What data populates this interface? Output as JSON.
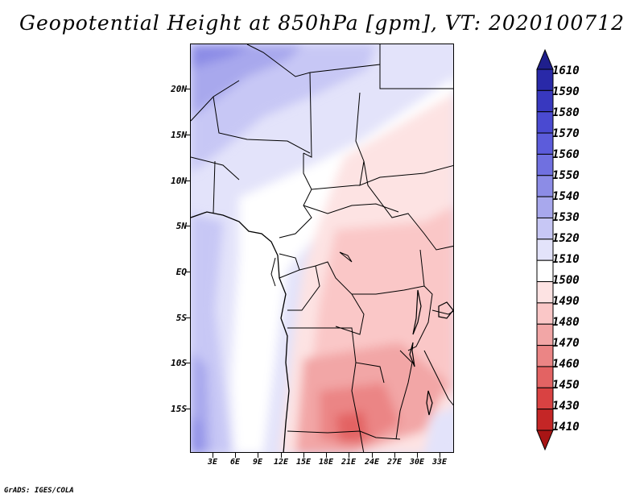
{
  "title": "Geopotential Height at 850hPa [gpm], VT: 2020100712",
  "credit": "GrADS: IGES/COLA",
  "map": {
    "variable": "Geopotential Height",
    "level": "850hPa",
    "units": "gpm",
    "valid_time": "2020100712",
    "region": "Central Africa",
    "lon_range": [
      0,
      35
    ],
    "lat_range": [
      -20,
      25
    ]
  },
  "lat_labels": [
    "20N",
    "15N",
    "10N",
    "5N",
    "EQ",
    "5S",
    "10S",
    "15S"
  ],
  "lon_labels": [
    "3E",
    "6E",
    "9E",
    "12E",
    "15E",
    "18E",
    "21E",
    "24E",
    "27E",
    "30E",
    "33E"
  ],
  "colorbar": {
    "labels": [
      "1610",
      "1590",
      "1580",
      "1570",
      "1560",
      "1550",
      "1540",
      "1530",
      "1520",
      "1510",
      "1500",
      "1490",
      "1480",
      "1470",
      "1460",
      "1450",
      "1430",
      "1410"
    ],
    "colors": [
      "#1f1f8c",
      "#2929a8",
      "#3838bf",
      "#4a4ad1",
      "#5c5cdb",
      "#7070e0",
      "#8c8ce6",
      "#a8a8ed",
      "#c7c7f5",
      "#e3e3fa",
      "#ffffff",
      "#fde3e3",
      "#fac7c7",
      "#f2a6a6",
      "#eb8585",
      "#e36363",
      "#d94242",
      "#c42626",
      "#a81515"
    ]
  }
}
